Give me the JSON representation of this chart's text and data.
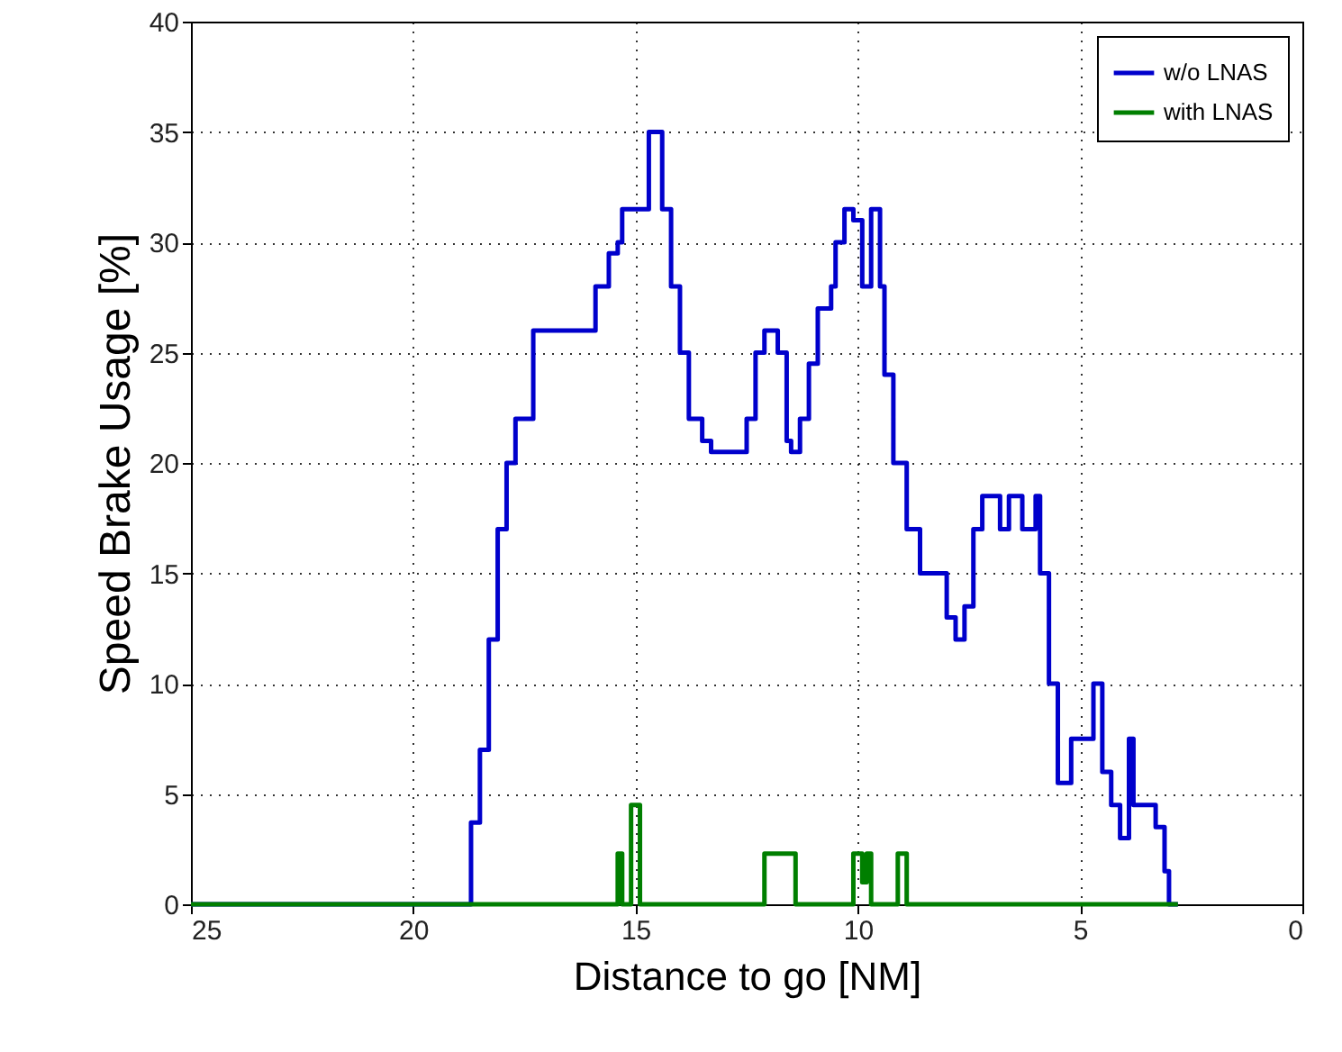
{
  "chart_data": {
    "type": "step",
    "xlabel": "Distance to go [NM]",
    "ylabel": "Speed Brake Usage [%]",
    "xlim": [
      25,
      0
    ],
    "ylim": [
      0,
      40
    ],
    "xticks": [
      25,
      20,
      15,
      10,
      5,
      0
    ],
    "yticks": [
      0,
      5,
      10,
      15,
      20,
      25,
      30,
      35,
      40
    ],
    "grid": true,
    "legend": "top right",
    "series": [
      {
        "name": "w/o LNAS",
        "color": "#0000cc",
        "x": [
          25,
          18.7,
          18.6,
          18.5,
          18.3,
          18.1,
          17.9,
          17.7,
          17.4,
          17.3,
          16.1,
          15.9,
          15.6,
          15.4,
          15.3,
          14.8,
          14.7,
          14.5,
          14.4,
          14.2,
          14.0,
          13.8,
          13.5,
          13.3,
          12.8,
          12.5,
          12.3,
          12.1,
          11.8,
          11.6,
          11.5,
          11.3,
          11.1,
          10.9,
          10.6,
          10.5,
          10.3,
          10.1,
          9.9,
          9.7,
          9.5,
          9.4,
          9.2,
          8.9,
          8.6,
          8.2,
          8.0,
          7.8,
          7.6,
          7.4,
          7.2,
          6.8,
          6.6,
          6.3,
          6.0,
          5.9,
          5.7,
          5.5,
          5.2,
          4.9,
          4.7,
          4.5,
          4.3,
          4.1,
          3.9,
          3.8,
          3.6,
          3.3,
          3.1,
          3.0,
          2.8
        ],
        "values": [
          0,
          3.7,
          3.7,
          7,
          12,
          17,
          20,
          22,
          22,
          26,
          26,
          28,
          29.5,
          30,
          31.5,
          31.5,
          35,
          35,
          31.5,
          28,
          25,
          22,
          21,
          20.5,
          20.5,
          22,
          25,
          26,
          25,
          21,
          20.5,
          22,
          24.5,
          27,
          28,
          30,
          31.5,
          31,
          28,
          31.5,
          28,
          24,
          20,
          17,
          15,
          15,
          13,
          12,
          13.5,
          17,
          18.5,
          17,
          18.5,
          17,
          18.5,
          15,
          10,
          5.5,
          7.5,
          7.5,
          10,
          6,
          4.5,
          3,
          7.5,
          4.5,
          4.5,
          3.5,
          1.5,
          0,
          0
        ]
      },
      {
        "name": "with LNAS",
        "color": "#007f00",
        "x": [
          25,
          15.4,
          15.3,
          15.1,
          14.9,
          12.1,
          11.4,
          10.1,
          9.9,
          9.8,
          9.7,
          9.1,
          8.9,
          2.8
        ],
        "values": [
          0,
          2.3,
          0,
          4.5,
          0,
          2.3,
          0,
          2.3,
          1,
          2.3,
          0,
          2.3,
          0,
          0
        ]
      }
    ]
  }
}
